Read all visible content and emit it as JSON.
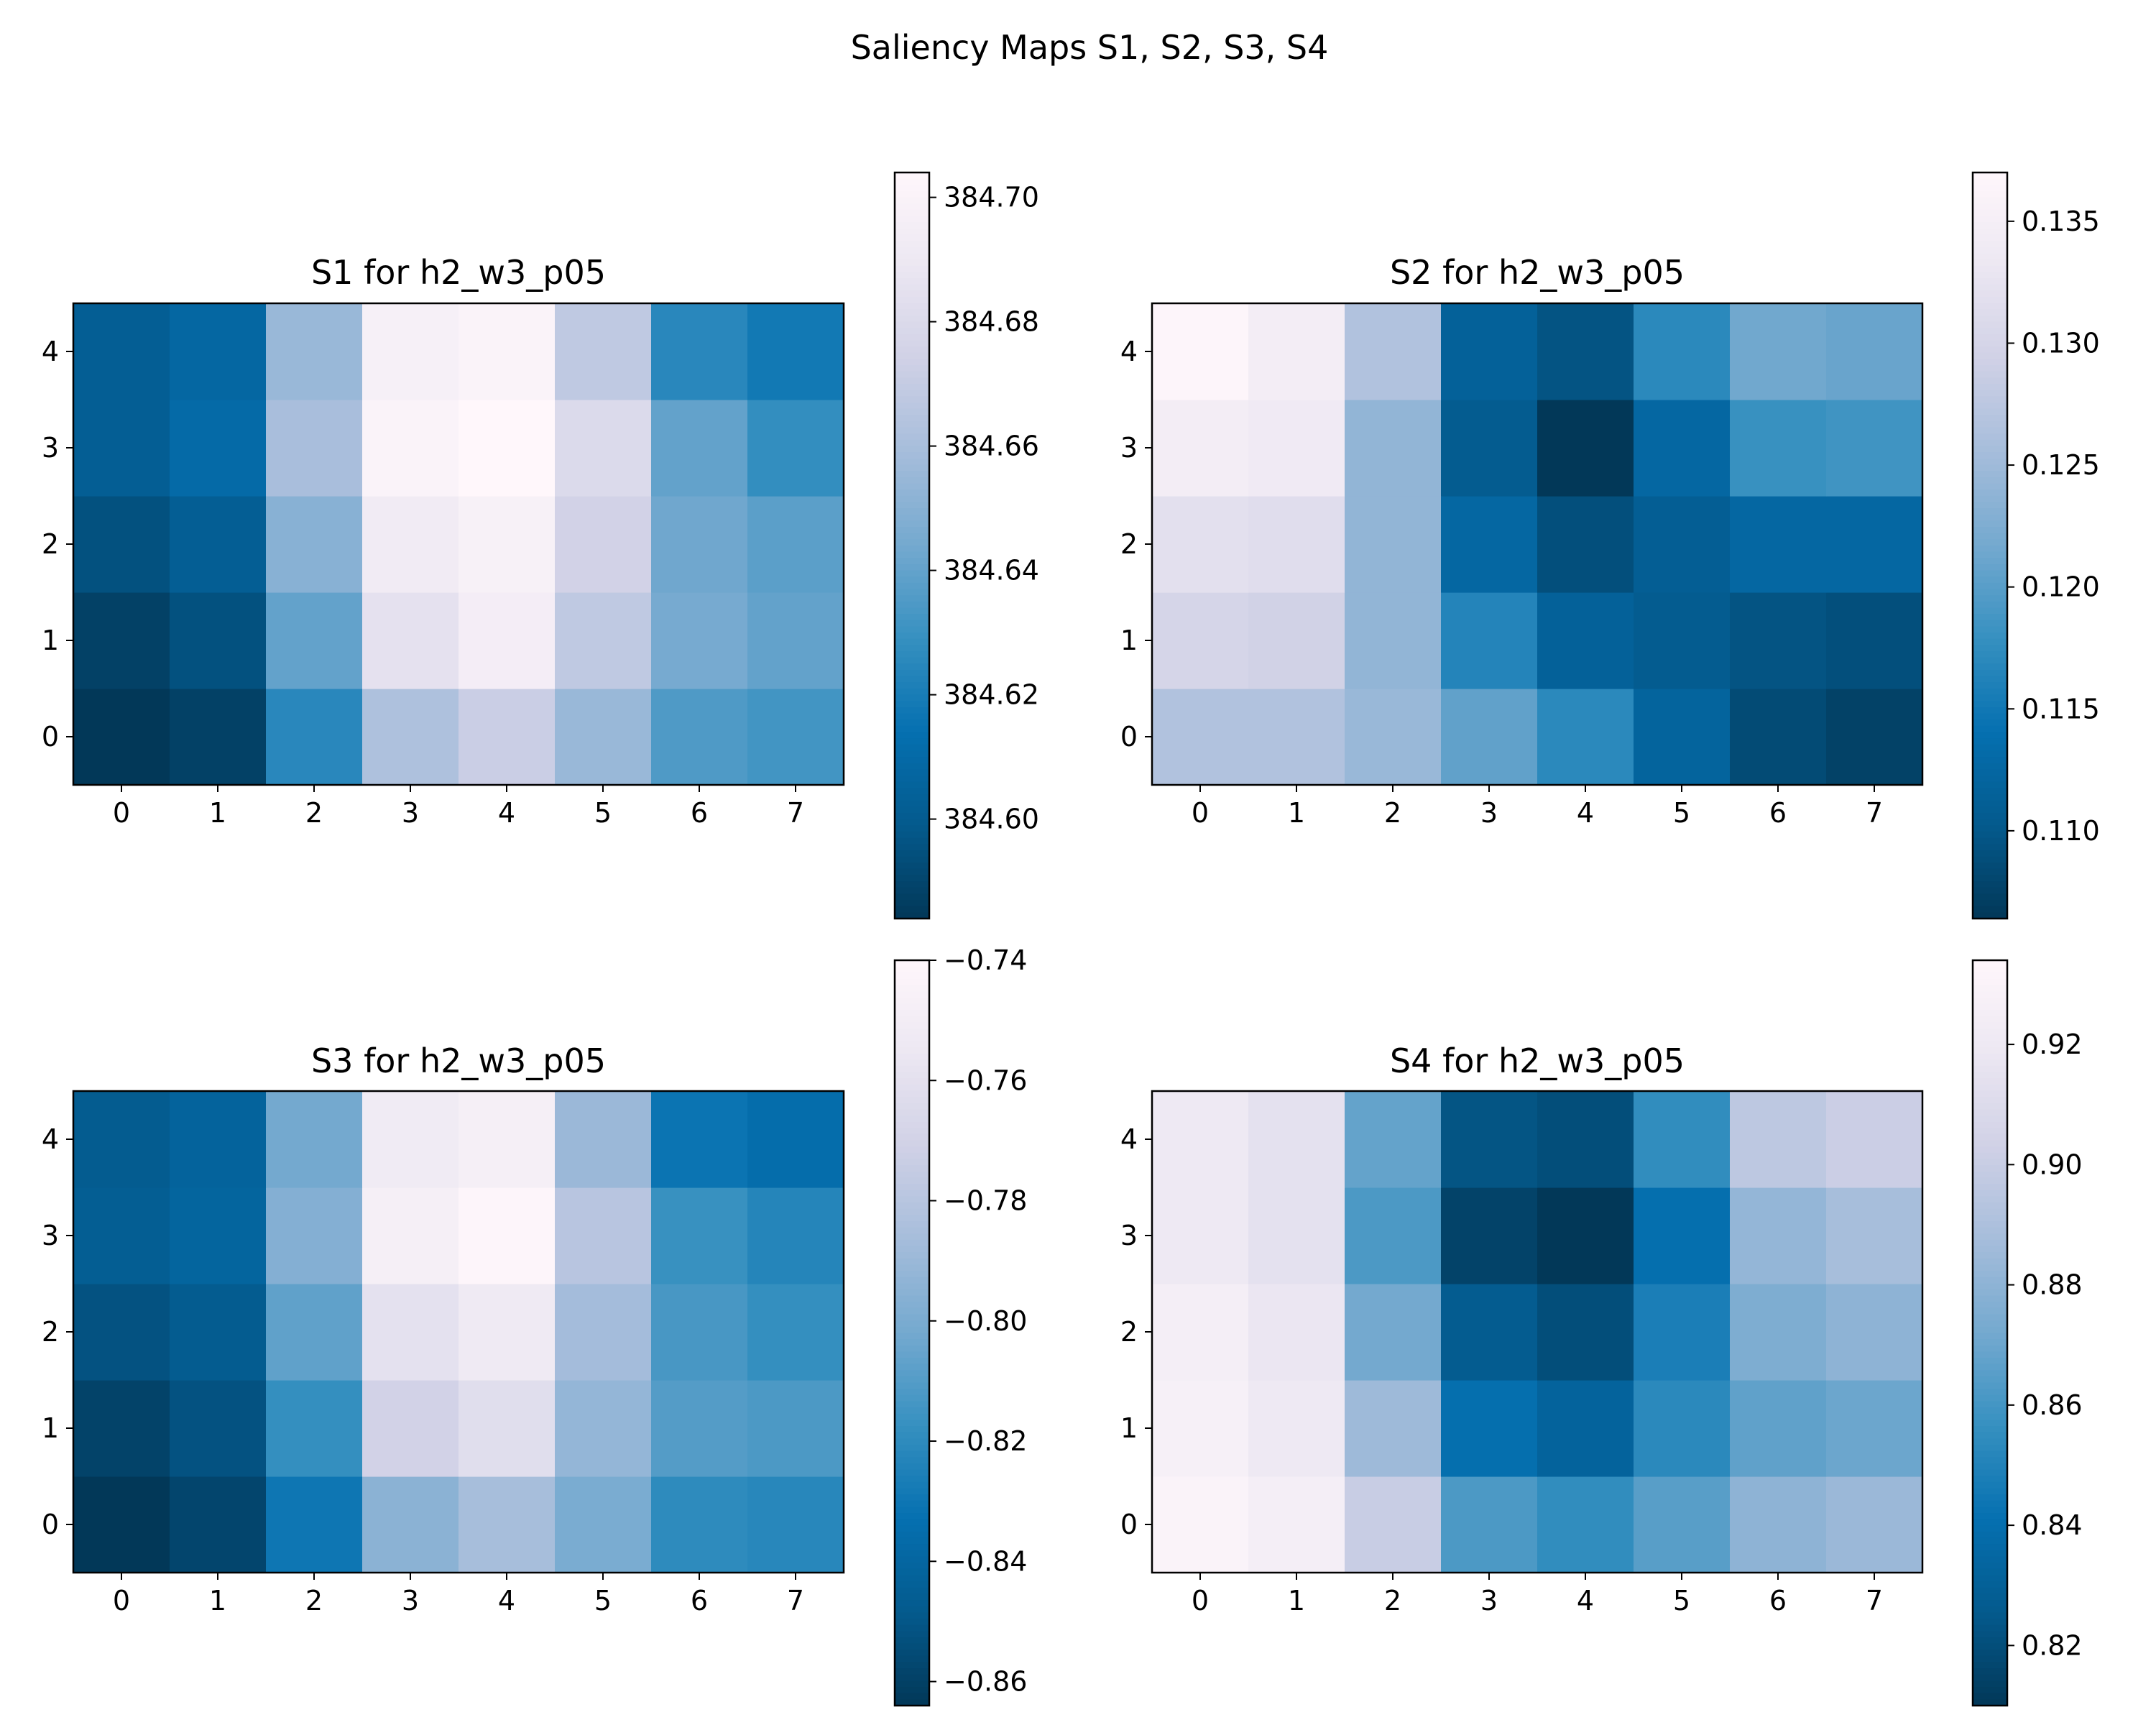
{
  "figure_title": "Saliency Maps S1, S2, S3, S4",
  "colormap": "PuBu_r",
  "colormap_stops": [
    "#023858",
    "#045a8d",
    "#0570b0",
    "#3690c0",
    "#74a9cf",
    "#a6bddb",
    "#d0d1e6",
    "#ece7f2",
    "#fff7fb"
  ],
  "chart_data": [
    {
      "type": "heatmap",
      "title": "S1 for h2_w3_p05",
      "x_ticks": [
        "0",
        "1",
        "2",
        "3",
        "4",
        "5",
        "6",
        "7"
      ],
      "y_ticks": [
        "0",
        "1",
        "2",
        "3",
        "4"
      ],
      "rows_bottom_to_top": [
        [
          384.584,
          384.588,
          384.625,
          384.662,
          384.672,
          384.655,
          384.635,
          384.632
        ],
        [
          384.588,
          384.595,
          384.64,
          384.685,
          384.695,
          384.668,
          384.645,
          384.64
        ],
        [
          384.595,
          384.602,
          384.65,
          384.693,
          384.698,
          384.675,
          384.643,
          384.638
        ],
        [
          384.602,
          384.61,
          384.66,
          384.7,
          384.705,
          384.68,
          384.64,
          384.628
        ],
        [
          384.602,
          384.608,
          384.655,
          384.697,
          384.7,
          384.668,
          384.625,
          384.618
        ]
      ],
      "colorbar": {
        "min": 384.584,
        "max": 384.704,
        "ticks": [
          "384.60",
          "384.62",
          "384.64",
          "384.66",
          "384.68",
          "384.70"
        ],
        "tick_values": [
          384.6,
          384.62,
          384.64,
          384.66,
          384.68,
          384.7
        ]
      }
    },
    {
      "type": "heatmap",
      "title": "S2 for h2_w3_p05",
      "x_ticks": [
        "0",
        "1",
        "2",
        "3",
        "4",
        "5",
        "6",
        "7"
      ],
      "y_ticks": [
        "0",
        "1",
        "2",
        "3",
        "4"
      ],
      "rows_bottom_to_top": [
        [
          0.1265,
          0.1265,
          0.1245,
          0.1205,
          0.117,
          0.112,
          0.1085,
          0.1075
        ],
        [
          0.13,
          0.1295,
          0.124,
          0.1165,
          0.1115,
          0.1105,
          0.1095,
          0.109
        ],
        [
          0.132,
          0.1315,
          0.124,
          0.1125,
          0.109,
          0.111,
          0.1125,
          0.1125
        ],
        [
          0.1345,
          0.134,
          0.124,
          0.1105,
          0.106,
          0.1125,
          0.118,
          0.1185
        ],
        [
          0.1365,
          0.1345,
          0.1265,
          0.1115,
          0.1095,
          0.117,
          0.1215,
          0.121
        ]
      ],
      "colorbar": {
        "min": 0.1064,
        "max": 0.137,
        "ticks": [
          "0.110",
          "0.115",
          "0.120",
          "0.125",
          "0.130",
          "0.135"
        ],
        "tick_values": [
          0.11,
          0.115,
          0.12,
          0.125,
          0.13,
          0.135
        ]
      }
    },
    {
      "type": "heatmap",
      "title": "S3 for h2_w3_p05",
      "x_ticks": [
        "0",
        "1",
        "2",
        "3",
        "4",
        "5",
        "6",
        "7"
      ],
      "y_ticks": [
        "0",
        "1",
        "2",
        "3",
        "4"
      ],
      "rows_bottom_to_top": [
        [
          -0.864,
          -0.858,
          -0.83,
          -0.795,
          -0.786,
          -0.8,
          -0.82,
          -0.822
        ],
        [
          -0.859,
          -0.852,
          -0.818,
          -0.77,
          -0.762,
          -0.792,
          -0.81,
          -0.812
        ],
        [
          -0.852,
          -0.847,
          -0.807,
          -0.76,
          -0.753,
          -0.787,
          -0.813,
          -0.818
        ],
        [
          -0.846,
          -0.841,
          -0.797,
          -0.748,
          -0.742,
          -0.78,
          -0.817,
          -0.823
        ],
        [
          -0.847,
          -0.842,
          -0.802,
          -0.752,
          -0.748,
          -0.79,
          -0.831,
          -0.835
        ]
      ],
      "colorbar": {
        "min": -0.864,
        "max": -0.74,
        "ticks": [
          "−0.86",
          "−0.84",
          "−0.82",
          "−0.80",
          "−0.78",
          "−0.76",
          "−0.74"
        ],
        "tick_values": [
          -0.86,
          -0.84,
          -0.82,
          -0.8,
          -0.78,
          -0.76,
          -0.74
        ]
      }
    },
    {
      "type": "heatmap",
      "title": "S4 for h2_w3_p05",
      "x_ticks": [
        "0",
        "1",
        "2",
        "3",
        "4",
        "5",
        "6",
        "7"
      ],
      "y_ticks": [
        "0",
        "1",
        "2",
        "3",
        "4"
      ],
      "rows_bottom_to_top": [
        [
          0.93,
          0.925,
          0.9,
          0.862,
          0.855,
          0.865,
          0.88,
          0.884
        ],
        [
          0.927,
          0.92,
          0.885,
          0.84,
          0.832,
          0.853,
          0.867,
          0.87
        ],
        [
          0.925,
          0.918,
          0.872,
          0.827,
          0.82,
          0.848,
          0.875,
          0.88
        ],
        [
          0.92,
          0.914,
          0.862,
          0.815,
          0.81,
          0.84,
          0.882,
          0.888
        ],
        [
          0.92,
          0.914,
          0.868,
          0.823,
          0.82,
          0.855,
          0.896,
          0.901
        ]
      ],
      "colorbar": {
        "min": 0.81,
        "max": 0.934,
        "ticks": [
          "0.82",
          "0.84",
          "0.86",
          "0.88",
          "0.90",
          "0.92"
        ],
        "tick_values": [
          0.82,
          0.84,
          0.86,
          0.88,
          0.9,
          0.92
        ]
      }
    }
  ]
}
